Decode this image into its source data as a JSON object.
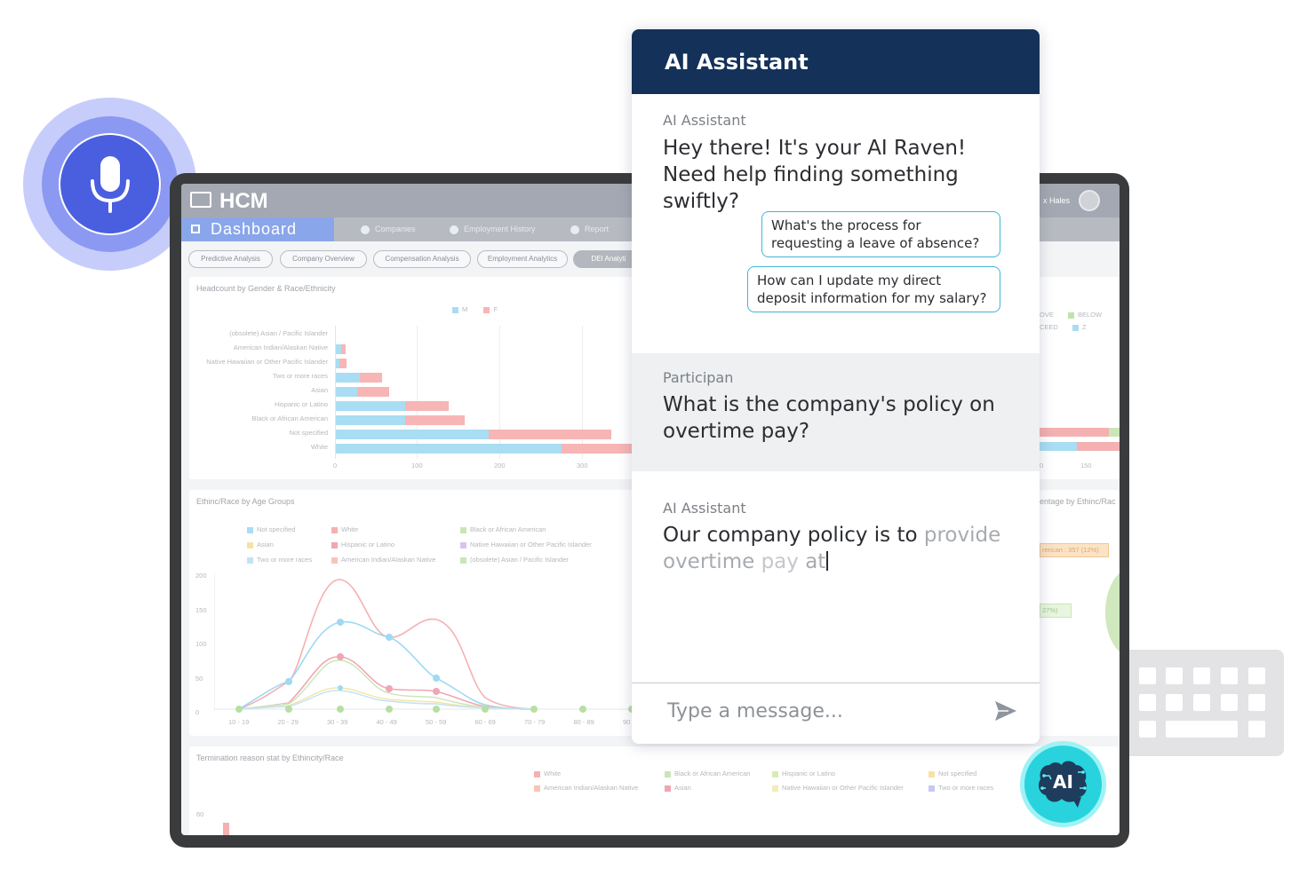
{
  "hcm": {
    "title": "HCM",
    "user_name": "x Hales",
    "dashboard_label": "Dashboard",
    "nav_links": [
      "Companies",
      "Employment History",
      "Report"
    ],
    "pills": [
      "Predictive Analysis",
      "Company Overview",
      "Compensation Analysis",
      "Employment Analytics",
      "DEI Analyti"
    ],
    "cards": {
      "headcount_title": "Headcount by Gender & Race/Ethnicity",
      "headcount_legend": [
        "M",
        "F"
      ],
      "headcount_rows": [
        "(obsolete) Asian / Pacific Islander",
        "American Indian/Alaskan Native",
        "Native Hawaiian or Other Pacific Islander",
        "Two or more races",
        "Asian",
        "Hispanic or Latino",
        "Black or African American",
        "Not specified",
        "White"
      ],
      "headcount_ticks": [
        "0",
        "100",
        "200",
        "300"
      ],
      "age_title": "Ethinc/Race by Age Groups",
      "age_legend": [
        "Not specified",
        "White",
        "Black or African American",
        "Asian",
        "Hispanic or Latino",
        "Native Hawaiian or Other Pacific Islander",
        "Two or more races",
        "American Indian/Alaskan Native",
        "(obsolete) Asian / Pacific Islander"
      ],
      "age_x": [
        "10 - 19",
        "20 - 29",
        "30 - 39",
        "40 - 49",
        "50 - 59",
        "60 - 69",
        "70 - 79",
        "80 - 89",
        "90"
      ],
      "age_y": [
        "200",
        "150",
        "100",
        "50",
        "0"
      ],
      "termination_title": "Termination reason stat by Ethincity/Race",
      "termination_legend": [
        "White",
        "Black or African American",
        "Hispanic or Latino",
        "Not specified",
        "American Indian/Alaskan Native",
        "Asian",
        "Native Hawaiian or Other Pacific Islander",
        "Two or more races"
      ],
      "termination_y": "60",
      "right_legend": [
        "OVE",
        "BELOW",
        "CEED",
        "Z"
      ],
      "right_ticks": [
        "0",
        "150"
      ],
      "right_pie_title": "entage by Ethinc/Rac",
      "right_label_1": "rerican : 357 (12%)",
      "right_label_2": "27%)"
    }
  },
  "chat": {
    "title": "AI Assistant",
    "messages": [
      {
        "sender": "AI Assistant",
        "text": "Hey there! It's your AI Raven! Need help finding something swiftly?"
      },
      {
        "sender": "Participan",
        "text": "What is the company's policy on overtime pay?"
      },
      {
        "sender": "AI Assistant",
        "text_typed": "Our company policy is to",
        "text_faded_1": " provide overtime",
        "text_faded_2": " pay",
        "text_faded_3": " at"
      }
    ],
    "suggestions": [
      "What's the process for requesting a leave of absence?",
      "How can I update my direct deposit information for my salary?"
    ],
    "input_placeholder": "Type a message...",
    "ai_badge": "AI"
  },
  "colors": {
    "header": "#133159",
    "suggestion_border": "#3fb6d3",
    "mic": "#4a5fe0",
    "ai_bubble": "#28d3dd"
  },
  "icons": [
    "microphone-icon",
    "keyboard-icon",
    "send-icon",
    "ai-brain-icon"
  ]
}
